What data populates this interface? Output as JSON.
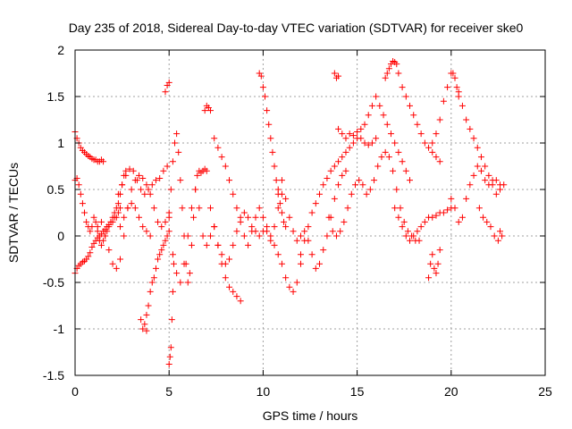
{
  "chart_data": {
    "type": "scatter",
    "title": "Day 235 of 2018, Sidereal Day-to-day VTEC variation (SDTVAR) for receiver ske0",
    "xlabel": "GPS time / hours",
    "ylabel": "SDTVAR / TECUs",
    "xlim": [
      0,
      25
    ],
    "ylim": [
      -1.5,
      2
    ],
    "xticks": [
      0,
      5,
      10,
      15,
      20,
      25
    ],
    "xtick_labels": [
      "0",
      "5",
      "10",
      "15",
      "20",
      "25"
    ],
    "yticks": [
      -1.5,
      -1,
      -0.5,
      0,
      0.5,
      1,
      1.5,
      2
    ],
    "ytick_labels": [
      "-1.5",
      "-1",
      "-0.5",
      "0",
      "0.5",
      "1",
      "1.5",
      "2"
    ],
    "grid": true,
    "marker": "+",
    "color": "#ff0000",
    "series": [
      {
        "name": "s1",
        "x": [
          0.0,
          0.1,
          0.2,
          0.3,
          0.4,
          0.5,
          0.6,
          0.7,
          0.8,
          0.9,
          1.0,
          1.1,
          1.2,
          1.3,
          1.4,
          1.5
        ],
        "y": [
          1.12,
          1.05,
          1.0,
          0.95,
          0.92,
          0.9,
          0.88,
          0.86,
          0.85,
          0.83,
          0.82,
          0.82,
          0.8,
          0.8,
          0.82,
          0.8
        ]
      },
      {
        "name": "s2",
        "x": [
          0.0,
          0.1,
          0.2,
          0.3,
          0.4,
          0.5,
          0.6,
          0.7,
          0.8,
          0.9,
          1.0,
          1.1,
          1.2,
          1.3,
          1.4,
          1.5,
          1.6,
          1.7,
          1.8,
          1.9,
          2.0,
          2.1,
          2.2,
          2.3,
          2.4
        ],
        "y": [
          0.6,
          0.62,
          0.55,
          0.45,
          0.35,
          0.25,
          0.15,
          0.1,
          0.05,
          0.1,
          0.2,
          0.15,
          0.05,
          -0.05,
          -0.1,
          -0.05,
          0.0,
          0.05,
          0.1,
          0.15,
          0.15,
          0.2,
          0.2,
          0.25,
          0.3
        ]
      },
      {
        "name": "s3",
        "x": [
          0.0,
          0.1,
          0.2,
          0.3,
          0.4,
          0.5,
          0.6,
          0.7,
          0.8,
          0.9,
          1.0,
          1.1,
          1.2,
          1.3,
          1.4,
          1.5,
          1.6,
          1.7,
          1.8,
          1.9,
          2.0,
          2.1,
          2.2,
          2.3,
          2.4,
          2.5,
          2.6,
          2.7
        ],
        "y": [
          -0.4,
          -0.35,
          -0.32,
          -0.3,
          -0.28,
          -0.27,
          -0.25,
          -0.22,
          -0.18,
          -0.12,
          -0.08,
          -0.05,
          -0.02,
          0.0,
          0.02,
          0.05,
          0.07,
          0.1,
          0.12,
          0.15,
          0.2,
          0.25,
          0.3,
          0.35,
          0.45,
          0.55,
          0.65,
          0.7
        ]
      },
      {
        "name": "s4",
        "x": [
          1.2,
          1.4,
          1.6,
          1.8,
          2.0,
          2.2,
          2.4,
          2.6,
          2.8,
          3.0,
          3.2,
          3.4,
          3.6,
          3.8,
          4.0,
          4.2,
          4.4,
          4.6,
          4.8,
          5.0
        ],
        "y": [
          0.1,
          0.15,
          0.0,
          -0.15,
          -0.3,
          -0.35,
          -0.25,
          0.0,
          0.3,
          0.5,
          0.6,
          0.65,
          0.62,
          0.55,
          0.45,
          0.3,
          0.15,
          0.1,
          0.15,
          0.25
        ]
      },
      {
        "name": "s5",
        "x": [
          2.3,
          2.5,
          2.7,
          2.9,
          3.1,
          3.3,
          3.5,
          3.7,
          3.9,
          4.1,
          4.3,
          4.5,
          4.7,
          4.9
        ],
        "y": [
          0.45,
          0.55,
          0.65,
          0.72,
          0.7,
          0.6,
          0.5,
          0.45,
          0.5,
          0.55,
          0.6,
          0.62,
          0.7,
          0.75
        ]
      },
      {
        "name": "s6",
        "x": [
          2.4,
          2.6,
          2.8,
          3.0,
          3.2,
          3.4,
          3.6,
          3.8,
          4.0
        ],
        "y": [
          0.1,
          0.2,
          0.3,
          0.35,
          0.3,
          0.2,
          0.1,
          0.05,
          0.0
        ]
      },
      {
        "name": "s7",
        "x": [
          3.5,
          3.6,
          3.7,
          3.8
        ],
        "y": [
          -0.9,
          -1.0,
          -0.95,
          -1.02
        ]
      },
      {
        "name": "s8",
        "x": [
          3.8,
          3.9,
          4.0,
          4.1,
          4.2,
          4.3,
          4.4,
          4.5,
          4.6,
          4.7,
          4.8,
          4.9,
          5.0
        ],
        "y": [
          -0.85,
          -0.75,
          -0.6,
          -0.5,
          -0.45,
          -0.35,
          -0.25,
          -0.2,
          -0.15,
          -0.1,
          -0.05,
          0.0,
          0.05
        ]
      },
      {
        "name": "s9",
        "x": [
          4.8,
          4.9,
          5.0
        ],
        "y": [
          1.55,
          1.62,
          1.65
        ]
      },
      {
        "name": "s10",
        "x": [
          5.0,
          5.05,
          5.1,
          5.15,
          5.2,
          5.25
        ],
        "y": [
          -1.38,
          -1.3,
          -1.2,
          -0.9,
          -0.6,
          -0.3
        ]
      },
      {
        "name": "s11",
        "x": [
          5.0,
          5.1,
          5.2,
          5.3,
          5.4,
          5.5,
          5.6,
          5.7,
          5.8,
          5.9,
          6.0,
          6.1,
          6.2,
          6.3,
          6.4,
          6.5,
          6.6,
          6.7,
          6.8,
          6.9,
          7.0
        ],
        "y": [
          0.2,
          0.5,
          0.8,
          1.0,
          1.1,
          0.9,
          0.6,
          0.3,
          0.0,
          -0.3,
          -0.5,
          -0.4,
          -0.1,
          0.2,
          0.5,
          0.65,
          0.7,
          0.68,
          0.7,
          0.72,
          0.7
        ]
      },
      {
        "name": "s12",
        "x": [
          5.2,
          5.4,
          5.6,
          5.8,
          6.0,
          6.2,
          6.4,
          6.6,
          6.8,
          7.0,
          7.2,
          7.4,
          7.6,
          7.8,
          8.0,
          8.2,
          8.4,
          8.6,
          8.8
        ],
        "y": [
          -0.2,
          -0.4,
          -0.5,
          -0.3,
          0.0,
          0.3,
          0.5,
          0.3,
          0.0,
          -0.1,
          0.0,
          0.1,
          -0.1,
          -0.3,
          -0.45,
          -0.55,
          -0.6,
          -0.65,
          -0.7
        ]
      },
      {
        "name": "s13",
        "x": [
          6.9,
          7.0,
          7.1,
          7.2
        ],
        "y": [
          1.35,
          1.4,
          1.38,
          1.35
        ]
      },
      {
        "name": "s14",
        "x": [
          7.4,
          7.6,
          7.8,
          8.0,
          8.2,
          8.4,
          8.6,
          8.8,
          9.0,
          9.2,
          9.4,
          9.6,
          9.8,
          10.0,
          10.2,
          10.4,
          10.6,
          10.8,
          11.0
        ],
        "y": [
          1.05,
          0.95,
          0.85,
          0.75,
          0.6,
          0.45,
          0.3,
          0.15,
          0.0,
          -0.1,
          0.05,
          0.2,
          0.3,
          0.2,
          0.05,
          -0.05,
          0.1,
          0.3,
          0.45
        ]
      },
      {
        "name": "s15",
        "x": [
          7.2,
          7.4,
          7.6,
          7.8,
          8.0,
          8.2,
          8.4,
          8.6,
          8.8,
          9.0,
          9.2,
          9.4,
          9.6,
          9.8,
          10.0,
          10.2,
          10.4,
          10.6,
          10.8,
          11.0,
          11.2,
          11.4,
          11.6,
          11.8,
          12.0
        ],
        "y": [
          0.3,
          0.1,
          -0.1,
          -0.2,
          -0.3,
          -0.25,
          -0.1,
          0.05,
          0.2,
          0.25,
          0.2,
          0.1,
          0.05,
          0.0,
          0.05,
          0.1,
          0.0,
          -0.1,
          -0.2,
          -0.3,
          -0.45,
          -0.55,
          -0.6,
          -0.5,
          -0.3
        ]
      },
      {
        "name": "s16",
        "x": [
          9.8,
          9.9,
          10.0,
          10.1,
          10.2,
          10.3,
          10.4,
          10.5,
          10.6,
          10.7,
          10.8,
          10.9,
          11.0,
          11.1,
          11.2
        ],
        "y": [
          1.75,
          1.72,
          1.6,
          1.5,
          1.35,
          1.2,
          1.05,
          0.9,
          0.75,
          0.6,
          0.45,
          0.35,
          0.25,
          0.15,
          0.1
        ]
      },
      {
        "name": "s17",
        "x": [
          10.8,
          11.0,
          11.2,
          11.4,
          11.6,
          11.8,
          12.0,
          12.2,
          12.4,
          12.6,
          12.8,
          13.0,
          13.2,
          13.4,
          13.6,
          13.8,
          14.0,
          14.2,
          14.4
        ],
        "y": [
          0.5,
          0.6,
          0.4,
          0.2,
          0.05,
          -0.05,
          0.0,
          0.05,
          -0.05,
          -0.2,
          -0.35,
          -0.3,
          -0.15,
          0.0,
          0.2,
          0.4,
          0.55,
          0.65,
          0.7
        ]
      },
      {
        "name": "s18",
        "x": [
          12.0,
          12.2,
          12.4,
          12.6,
          12.8,
          13.0,
          13.2,
          13.4,
          13.6,
          13.8,
          14.0,
          14.2,
          14.4,
          14.6,
          14.8,
          15.0,
          15.2,
          15.4,
          15.6,
          15.8,
          16.0
        ],
        "y": [
          -0.2,
          -0.05,
          0.1,
          0.25,
          0.35,
          0.45,
          0.55,
          0.62,
          0.7,
          0.75,
          0.8,
          0.85,
          0.9,
          0.95,
          1.0,
          1.05,
          1.05,
          1.0,
          0.98,
          1.0,
          1.05
        ]
      },
      {
        "name": "s19",
        "x": [
          13.8,
          13.9,
          14.0
        ],
        "y": [
          1.75,
          1.7,
          1.72
        ]
      },
      {
        "name": "s20",
        "x": [
          13.5,
          13.7,
          13.9,
          14.1,
          14.3,
          14.5,
          14.7,
          14.9,
          15.1,
          15.3,
          15.5,
          15.7,
          15.9,
          16.1,
          16.3,
          16.5,
          16.7,
          16.9,
          17.1,
          17.3,
          17.5,
          17.7,
          17.9,
          18.1,
          18.3
        ],
        "y": [
          0.2,
          0.05,
          0.0,
          0.05,
          0.15,
          0.3,
          0.45,
          0.55,
          0.6,
          0.55,
          0.45,
          0.5,
          0.6,
          0.75,
          0.85,
          0.9,
          0.85,
          0.7,
          0.5,
          0.3,
          0.15,
          0.05,
          0.0,
          -0.05,
          -0.05
        ]
      },
      {
        "name": "s21",
        "x": [
          14.0,
          14.2,
          14.4,
          14.6,
          14.8,
          15.0,
          15.2,
          15.4,
          15.6,
          15.8,
          16.0,
          16.2,
          16.4,
          16.6,
          16.8,
          17.0,
          17.2,
          17.4,
          17.6,
          17.8
        ],
        "y": [
          1.15,
          1.1,
          1.05,
          1.1,
          1.08,
          1.12,
          1.15,
          1.2,
          1.3,
          1.4,
          1.5,
          1.4,
          1.3,
          1.2,
          1.1,
          1.0,
          0.9,
          0.8,
          0.7,
          0.6
        ]
      },
      {
        "name": "s22",
        "x": [
          16.5,
          16.6,
          16.7,
          16.8,
          16.9,
          17.0,
          17.1,
          17.2,
          17.4,
          17.6,
          17.8,
          18.0,
          18.2,
          18.4,
          18.6,
          18.8,
          19.0,
          19.2,
          19.4
        ],
        "y": [
          1.7,
          1.75,
          1.8,
          1.85,
          1.88,
          1.87,
          1.85,
          1.75,
          1.6,
          1.5,
          1.4,
          1.3,
          1.2,
          1.1,
          1.0,
          0.95,
          0.9,
          0.85,
          0.8
        ]
      },
      {
        "name": "s23",
        "x": [
          17.0,
          17.2,
          17.4,
          17.6,
          17.8,
          18.0,
          18.2,
          18.4,
          18.6,
          18.8,
          19.0,
          19.2,
          19.4,
          19.6,
          19.8,
          20.0
        ],
        "y": [
          0.3,
          0.2,
          0.1,
          0.0,
          -0.05,
          0.0,
          0.05,
          0.1,
          0.15,
          0.2,
          0.2,
          0.22,
          0.25,
          0.25,
          0.28,
          0.3
        ]
      },
      {
        "name": "s24",
        "x": [
          19.0,
          19.2,
          19.4,
          19.6,
          19.8,
          20.0,
          20.1,
          20.2,
          20.3,
          20.4
        ],
        "y": [
          1.0,
          1.1,
          1.25,
          1.45,
          1.6,
          1.75,
          1.75,
          1.7,
          1.6,
          1.55
        ]
      },
      {
        "name": "s25",
        "x": [
          18.8,
          18.9,
          19.0,
          19.1,
          19.2,
          19.3,
          19.4
        ],
        "y": [
          -0.45,
          -0.3,
          -0.2,
          -0.35,
          -0.4,
          -0.3,
          -0.15
        ]
      },
      {
        "name": "s26",
        "x": [
          20.4,
          20.6,
          20.8,
          21.0,
          21.2,
          21.4,
          21.6,
          21.8,
          22.0,
          22.2,
          22.4,
          22.6,
          22.8
        ],
        "y": [
          1.5,
          1.4,
          1.25,
          1.15,
          1.05,
          0.95,
          0.85,
          0.75,
          0.65,
          0.55,
          0.45,
          0.5,
          0.55
        ]
      },
      {
        "name": "s27",
        "x": [
          20.0,
          20.2,
          20.4,
          20.6,
          20.8,
          21.0,
          21.2,
          21.4,
          21.6,
          21.8,
          22.0,
          22.2,
          22.4,
          22.6
        ],
        "y": [
          0.4,
          0.3,
          0.15,
          0.2,
          0.4,
          0.55,
          0.65,
          0.75,
          0.7,
          0.6,
          0.55,
          0.6,
          0.6,
          0.55
        ]
      },
      {
        "name": "s28",
        "x": [
          21.5,
          21.7,
          21.9,
          22.1,
          22.3,
          22.5,
          22.6,
          22.7
        ],
        "y": [
          0.3,
          0.2,
          0.15,
          0.1,
          0.0,
          -0.05,
          0.05,
          0.0
        ]
      }
    ]
  }
}
